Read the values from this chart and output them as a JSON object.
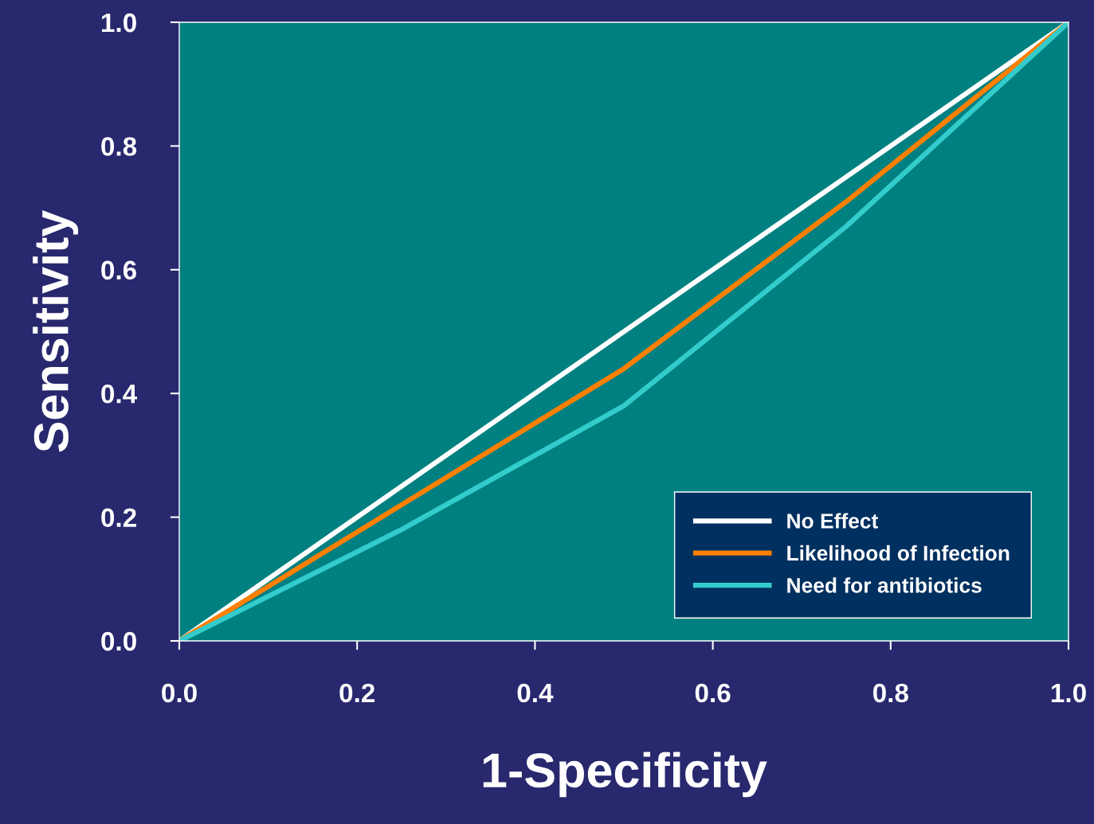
{
  "chart_data": {
    "type": "line",
    "xlabel": "1-Specificity",
    "ylabel": "Sensitivity",
    "x": [
      0,
      0.25,
      0.5,
      0.75,
      1
    ],
    "series": [
      {
        "name": "No Effect",
        "color": "#ffffff",
        "values": [
          0,
          0.25,
          0.5,
          0.75,
          1
        ]
      },
      {
        "name": "Likelihood of Infection",
        "color": "#ff8000",
        "values": [
          0,
          0.22,
          0.44,
          0.71,
          1
        ]
      },
      {
        "name": "Need for antibiotics",
        "color": "#33cccc",
        "values": [
          0,
          0.18,
          0.38,
          0.67,
          1
        ]
      }
    ],
    "xlim": [
      0,
      1
    ],
    "ylim": [
      0,
      1
    ],
    "xticks": [
      {
        "value": 0,
        "label": "0.0"
      },
      0.2,
      0.4,
      0.6,
      0.8,
      {
        "value": 1,
        "label": "1.0"
      }
    ],
    "yticks": [
      {
        "value": 0,
        "label": "0.0"
      },
      0.2,
      0.4,
      0.6,
      0.8,
      {
        "value": 1,
        "label": "1.0"
      }
    ],
    "grid": false,
    "legend": "bottom right",
    "marker": "none",
    "line_style": "solid"
  }
}
